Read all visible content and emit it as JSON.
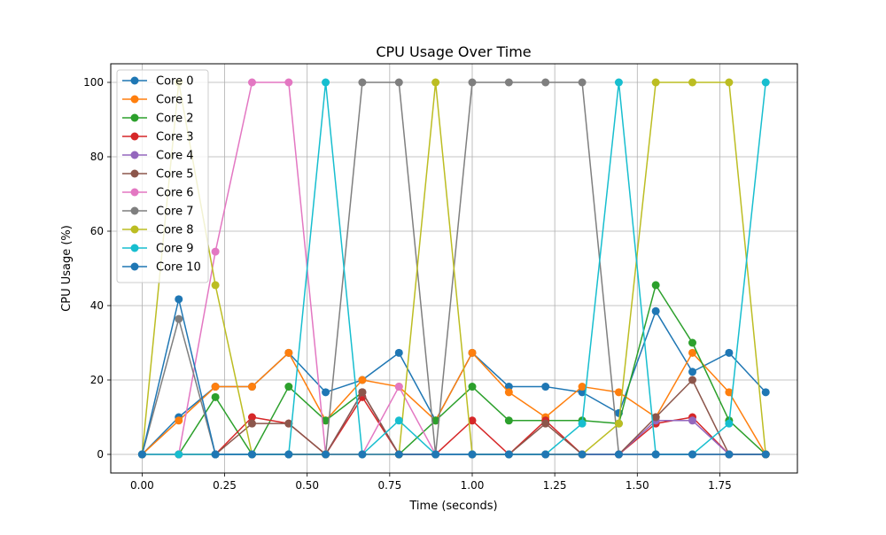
{
  "chart_data": {
    "type": "line",
    "title": "CPU Usage Over Time",
    "xlabel": "Time (seconds)",
    "ylabel": "CPU Usage (%)",
    "xlim": [
      -0.095,
      1.985
    ],
    "ylim": [
      -5,
      105
    ],
    "xticks": [
      0.0,
      0.25,
      0.5,
      0.75,
      1.0,
      1.25,
      1.5,
      1.75
    ],
    "xtick_labels": [
      "0.00",
      "0.25",
      "0.50",
      "0.75",
      "1.00",
      "1.25",
      "1.50",
      "1.75"
    ],
    "yticks": [
      0,
      20,
      40,
      60,
      80,
      100
    ],
    "ytick_labels": [
      "0",
      "20",
      "40",
      "60",
      "80",
      "100"
    ],
    "grid": true,
    "legend_position": "top-left",
    "x": [
      0.0,
      0.111,
      0.222,
      0.333,
      0.444,
      0.556,
      0.667,
      0.778,
      0.889,
      1.0,
      1.111,
      1.222,
      1.333,
      1.444,
      1.556,
      1.667,
      1.778,
      1.889
    ],
    "series": [
      {
        "name": "Core 0",
        "color": "#1f77b4",
        "values": [
          0,
          10,
          18.2,
          18.2,
          27.3,
          16.7,
          20,
          27.3,
          9.1,
          27.3,
          18.2,
          18.2,
          16.7,
          11.1,
          38.5,
          22.2,
          27.3,
          16.7
        ]
      },
      {
        "name": "Core 1",
        "color": "#ff7f0e",
        "values": [
          0,
          9.1,
          18.2,
          18.2,
          27.3,
          9.1,
          20,
          18.2,
          9.1,
          27.3,
          16.7,
          10,
          18.2,
          16.7,
          10,
          27.3,
          16.7,
          0
        ]
      },
      {
        "name": "Core 2",
        "color": "#2ca02c",
        "values": [
          0,
          0,
          15.4,
          0,
          18.2,
          9.1,
          16.7,
          0,
          9.1,
          18.2,
          9.1,
          9.1,
          9.1,
          8.3,
          45.5,
          30,
          9.1,
          0
        ]
      },
      {
        "name": "Core 3",
        "color": "#d62728",
        "values": [
          0,
          0,
          0,
          10,
          8.3,
          0,
          15.4,
          0,
          0,
          9.1,
          0,
          9.1,
          0,
          0,
          8.3,
          10,
          0,
          0
        ]
      },
      {
        "name": "Core 4",
        "color": "#9467bd",
        "values": [
          0,
          0,
          0,
          0,
          0,
          0,
          16.7,
          0,
          0,
          0,
          0,
          0,
          0,
          0,
          9.1,
          9.1,
          0,
          0
        ]
      },
      {
        "name": "Core 5",
        "color": "#8c564b",
        "values": [
          0,
          0,
          0,
          8.3,
          8.3,
          0,
          16.7,
          0,
          0,
          0,
          0,
          8.3,
          0,
          0,
          10,
          20,
          0,
          0
        ]
      },
      {
        "name": "Core 6",
        "color": "#e377c2",
        "values": [
          0,
          0,
          54.5,
          100,
          100,
          0,
          0,
          18.2,
          0,
          0,
          0,
          0,
          0,
          0,
          0,
          0,
          0,
          0
        ]
      },
      {
        "name": "Core 7",
        "color": "#7f7f7f",
        "values": [
          0,
          36.4,
          0,
          0,
          0,
          0,
          100,
          100,
          0,
          100,
          100,
          100,
          100,
          0,
          0,
          0,
          0,
          0
        ]
      },
      {
        "name": "Core 8",
        "color": "#bcbd22",
        "values": [
          0,
          100,
          45.5,
          0,
          0,
          0,
          0,
          0,
          100,
          0,
          0,
          0,
          0,
          8.3,
          100,
          100,
          100,
          0
        ]
      },
      {
        "name": "Core 9",
        "color": "#17becf",
        "values": [
          0,
          0,
          0,
          0,
          0,
          100,
          0,
          9.1,
          0,
          0,
          0,
          0,
          8.3,
          100,
          0,
          0,
          8.3,
          100
        ]
      },
      {
        "name": "Core 10",
        "color": "#1f77b4",
        "values": [
          0,
          41.7,
          0,
          0,
          0,
          0,
          0,
          0,
          0,
          0,
          0,
          0,
          0,
          0,
          0,
          0,
          0,
          0
        ]
      }
    ]
  }
}
